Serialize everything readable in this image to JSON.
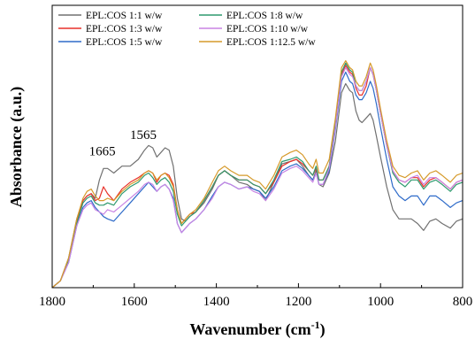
{
  "chart_data": {
    "type": "line",
    "xlabel": "Wavenumber (cm",
    "xlabel_sup": "-1",
    "xlabel_end": ")",
    "ylabel": "Absorbance (a.u.)",
    "xlim": [
      1800,
      800
    ],
    "x_reversed": true,
    "xticks": [
      1800,
      1600,
      1400,
      1200,
      1000,
      800
    ],
    "ylim": [
      0,
      1
    ],
    "yticks_shown": false,
    "grid": false,
    "legend_position": "top-left",
    "annotations": [
      {
        "text": "1665",
        "x": 1665,
        "y": 0.57
      },
      {
        "text": "1565",
        "x": 1565,
        "y": 0.64
      }
    ],
    "series": [
      {
        "name": "EPL:COS 1:1 w/w",
        "color": "#707070",
        "x": [
          1800,
          1780,
          1760,
          1740,
          1725,
          1715,
          1705,
          1695,
          1685,
          1675,
          1665,
          1650,
          1630,
          1610,
          1590,
          1575,
          1565,
          1555,
          1545,
          1535,
          1525,
          1515,
          1505,
          1495,
          1485,
          1475,
          1465,
          1450,
          1430,
          1410,
          1395,
          1380,
          1365,
          1345,
          1325,
          1310,
          1295,
          1280,
          1260,
          1240,
          1220,
          1205,
          1190,
          1175,
          1165,
          1157,
          1150,
          1140,
          1125,
          1110,
          1095,
          1085,
          1075,
          1068,
          1060,
          1052,
          1045,
          1035,
          1025,
          1018,
          1010,
          1000,
          985,
          970,
          955,
          940,
          925,
          910,
          895,
          880,
          865,
          850,
          830,
          815,
          800
        ],
        "y": [
          0.0,
          0.03,
          0.13,
          0.3,
          0.38,
          0.4,
          0.41,
          0.39,
          0.47,
          0.52,
          0.52,
          0.5,
          0.53,
          0.53,
          0.56,
          0.6,
          0.62,
          0.61,
          0.57,
          0.59,
          0.61,
          0.6,
          0.53,
          0.39,
          0.3,
          0.29,
          0.31,
          0.33,
          0.37,
          0.43,
          0.49,
          0.51,
          0.49,
          0.46,
          0.45,
          0.43,
          0.42,
          0.38,
          0.46,
          0.54,
          0.55,
          0.56,
          0.53,
          0.49,
          0.47,
          0.51,
          0.45,
          0.44,
          0.5,
          0.64,
          0.85,
          0.89,
          0.86,
          0.85,
          0.77,
          0.73,
          0.72,
          0.74,
          0.76,
          0.73,
          0.66,
          0.57,
          0.44,
          0.34,
          0.3,
          0.3,
          0.3,
          0.28,
          0.25,
          0.29,
          0.3,
          0.28,
          0.26,
          0.29,
          0.3
        ]
      },
      {
        "name": "EPL:COS 1:3 w/w",
        "color": "#e8312a",
        "x": [
          1800,
          1780,
          1760,
          1740,
          1725,
          1715,
          1705,
          1695,
          1685,
          1675,
          1665,
          1650,
          1630,
          1610,
          1590,
          1575,
          1565,
          1555,
          1545,
          1535,
          1525,
          1515,
          1505,
          1495,
          1485,
          1475,
          1465,
          1450,
          1430,
          1410,
          1395,
          1380,
          1365,
          1345,
          1325,
          1310,
          1295,
          1280,
          1260,
          1240,
          1220,
          1205,
          1190,
          1175,
          1165,
          1157,
          1150,
          1140,
          1125,
          1110,
          1095,
          1085,
          1075,
          1068,
          1060,
          1052,
          1045,
          1035,
          1025,
          1018,
          1010,
          1000,
          985,
          970,
          955,
          940,
          925,
          910,
          895,
          880,
          865,
          850,
          830,
          815,
          800
        ],
        "y": [
          0.0,
          0.03,
          0.12,
          0.29,
          0.38,
          0.4,
          0.41,
          0.38,
          0.39,
          0.44,
          0.41,
          0.38,
          0.43,
          0.46,
          0.48,
          0.5,
          0.51,
          0.5,
          0.46,
          0.49,
          0.5,
          0.49,
          0.45,
          0.34,
          0.28,
          0.3,
          0.32,
          0.33,
          0.38,
          0.44,
          0.49,
          0.51,
          0.49,
          0.47,
          0.47,
          0.45,
          0.44,
          0.41,
          0.46,
          0.53,
          0.55,
          0.56,
          0.54,
          0.51,
          0.49,
          0.52,
          0.47,
          0.47,
          0.53,
          0.71,
          0.93,
          0.97,
          0.94,
          0.93,
          0.87,
          0.84,
          0.84,
          0.88,
          0.96,
          0.93,
          0.86,
          0.76,
          0.62,
          0.51,
          0.47,
          0.46,
          0.48,
          0.48,
          0.44,
          0.47,
          0.48,
          0.46,
          0.43,
          0.46,
          0.47
        ]
      },
      {
        "name": "EPL:COS 1:5 w/w",
        "color": "#2e6bc9",
        "x": [
          1800,
          1780,
          1760,
          1740,
          1725,
          1715,
          1705,
          1695,
          1685,
          1675,
          1665,
          1650,
          1630,
          1610,
          1590,
          1575,
          1565,
          1555,
          1545,
          1535,
          1525,
          1515,
          1505,
          1495,
          1485,
          1475,
          1465,
          1450,
          1430,
          1410,
          1395,
          1380,
          1365,
          1345,
          1325,
          1310,
          1295,
          1280,
          1260,
          1240,
          1220,
          1205,
          1190,
          1175,
          1165,
          1157,
          1150,
          1140,
          1125,
          1110,
          1095,
          1085,
          1075,
          1068,
          1060,
          1052,
          1045,
          1035,
          1025,
          1018,
          1010,
          1000,
          985,
          970,
          955,
          940,
          925,
          910,
          895,
          880,
          865,
          850,
          830,
          815,
          800
        ],
        "y": [
          0.0,
          0.03,
          0.11,
          0.27,
          0.35,
          0.37,
          0.38,
          0.35,
          0.33,
          0.31,
          0.3,
          0.29,
          0.33,
          0.37,
          0.41,
          0.44,
          0.46,
          0.44,
          0.42,
          0.44,
          0.45,
          0.43,
          0.39,
          0.28,
          0.24,
          0.26,
          0.28,
          0.3,
          0.34,
          0.4,
          0.44,
          0.46,
          0.45,
          0.43,
          0.44,
          0.43,
          0.42,
          0.39,
          0.44,
          0.51,
          0.53,
          0.54,
          0.52,
          0.49,
          0.47,
          0.5,
          0.45,
          0.45,
          0.51,
          0.69,
          0.9,
          0.94,
          0.9,
          0.89,
          0.84,
          0.82,
          0.82,
          0.85,
          0.9,
          0.87,
          0.8,
          0.7,
          0.56,
          0.44,
          0.4,
          0.38,
          0.4,
          0.4,
          0.36,
          0.4,
          0.4,
          0.38,
          0.35,
          0.37,
          0.38
        ]
      },
      {
        "name": "EPL:COS 1:8 w/w",
        "color": "#2e9a6e",
        "x": [
          1800,
          1780,
          1760,
          1740,
          1725,
          1715,
          1705,
          1695,
          1685,
          1675,
          1665,
          1650,
          1630,
          1610,
          1590,
          1575,
          1565,
          1555,
          1545,
          1535,
          1525,
          1515,
          1505,
          1495,
          1485,
          1475,
          1465,
          1450,
          1430,
          1410,
          1395,
          1380,
          1365,
          1345,
          1325,
          1310,
          1295,
          1280,
          1260,
          1240,
          1220,
          1205,
          1190,
          1175,
          1165,
          1157,
          1150,
          1140,
          1125,
          1110,
          1095,
          1085,
          1075,
          1068,
          1060,
          1052,
          1045,
          1035,
          1025,
          1018,
          1010,
          1000,
          985,
          970,
          955,
          940,
          925,
          910,
          895,
          880,
          865,
          850,
          830,
          815,
          800
        ],
        "y": [
          0.0,
          0.03,
          0.12,
          0.28,
          0.37,
          0.39,
          0.4,
          0.37,
          0.36,
          0.36,
          0.37,
          0.36,
          0.41,
          0.44,
          0.46,
          0.49,
          0.5,
          0.48,
          0.45,
          0.47,
          0.48,
          0.46,
          0.42,
          0.32,
          0.27,
          0.29,
          0.31,
          0.33,
          0.38,
          0.44,
          0.49,
          0.51,
          0.49,
          0.47,
          0.47,
          0.45,
          0.44,
          0.41,
          0.47,
          0.55,
          0.56,
          0.57,
          0.55,
          0.51,
          0.49,
          0.53,
          0.47,
          0.47,
          0.53,
          0.72,
          0.94,
          0.98,
          0.95,
          0.94,
          0.88,
          0.86,
          0.86,
          0.9,
          0.96,
          0.93,
          0.86,
          0.76,
          0.62,
          0.5,
          0.46,
          0.44,
          0.47,
          0.47,
          0.43,
          0.46,
          0.47,
          0.45,
          0.42,
          0.45,
          0.46
        ]
      },
      {
        "name": "EPL:COS 1:10 w/w",
        "color": "#c884e4",
        "x": [
          1800,
          1780,
          1760,
          1740,
          1725,
          1715,
          1705,
          1695,
          1685,
          1675,
          1665,
          1650,
          1630,
          1610,
          1590,
          1575,
          1565,
          1555,
          1545,
          1535,
          1525,
          1515,
          1505,
          1495,
          1485,
          1475,
          1465,
          1450,
          1430,
          1410,
          1395,
          1380,
          1365,
          1345,
          1325,
          1310,
          1295,
          1280,
          1260,
          1240,
          1220,
          1205,
          1190,
          1175,
          1165,
          1157,
          1150,
          1140,
          1125,
          1110,
          1095,
          1085,
          1075,
          1068,
          1060,
          1052,
          1045,
          1035,
          1025,
          1018,
          1010,
          1000,
          985,
          970,
          955,
          940,
          925,
          910,
          895,
          880,
          865,
          850,
          830,
          815,
          800
        ],
        "y": [
          0.0,
          0.03,
          0.11,
          0.27,
          0.34,
          0.36,
          0.37,
          0.34,
          0.33,
          0.32,
          0.34,
          0.33,
          0.36,
          0.39,
          0.42,
          0.45,
          0.46,
          0.45,
          0.42,
          0.44,
          0.45,
          0.43,
          0.38,
          0.28,
          0.24,
          0.26,
          0.28,
          0.3,
          0.34,
          0.39,
          0.44,
          0.46,
          0.45,
          0.43,
          0.44,
          0.42,
          0.41,
          0.38,
          0.43,
          0.5,
          0.52,
          0.53,
          0.51,
          0.48,
          0.46,
          0.5,
          0.45,
          0.45,
          0.52,
          0.7,
          0.92,
          0.96,
          0.93,
          0.92,
          0.88,
          0.86,
          0.86,
          0.9,
          0.96,
          0.93,
          0.86,
          0.76,
          0.62,
          0.51,
          0.47,
          0.46,
          0.48,
          0.49,
          0.45,
          0.48,
          0.48,
          0.46,
          0.43,
          0.46,
          0.47
        ]
      },
      {
        "name": "EPL:COS 1:12.5 w/w",
        "color": "#d69a2a",
        "x": [
          1800,
          1780,
          1760,
          1740,
          1725,
          1715,
          1705,
          1695,
          1685,
          1675,
          1665,
          1650,
          1630,
          1610,
          1590,
          1575,
          1565,
          1555,
          1545,
          1535,
          1525,
          1515,
          1505,
          1495,
          1485,
          1475,
          1465,
          1450,
          1430,
          1410,
          1395,
          1380,
          1365,
          1345,
          1325,
          1310,
          1295,
          1280,
          1260,
          1240,
          1220,
          1205,
          1190,
          1175,
          1165,
          1157,
          1150,
          1140,
          1125,
          1110,
          1095,
          1085,
          1075,
          1068,
          1060,
          1052,
          1045,
          1035,
          1025,
          1018,
          1010,
          1000,
          985,
          970,
          955,
          940,
          925,
          910,
          895,
          880,
          865,
          850,
          830,
          815,
          800
        ],
        "y": [
          0.0,
          0.03,
          0.13,
          0.3,
          0.39,
          0.42,
          0.43,
          0.4,
          0.38,
          0.38,
          0.39,
          0.38,
          0.42,
          0.45,
          0.47,
          0.5,
          0.51,
          0.5,
          0.47,
          0.49,
          0.5,
          0.48,
          0.44,
          0.34,
          0.28,
          0.3,
          0.32,
          0.34,
          0.39,
          0.46,
          0.51,
          0.53,
          0.51,
          0.49,
          0.49,
          0.47,
          0.46,
          0.43,
          0.49,
          0.57,
          0.59,
          0.6,
          0.58,
          0.54,
          0.52,
          0.56,
          0.5,
          0.5,
          0.56,
          0.74,
          0.96,
          0.99,
          0.96,
          0.95,
          0.9,
          0.88,
          0.88,
          0.92,
          0.98,
          0.95,
          0.88,
          0.78,
          0.64,
          0.53,
          0.49,
          0.48,
          0.5,
          0.51,
          0.47,
          0.5,
          0.51,
          0.49,
          0.46,
          0.49,
          0.5
        ]
      }
    ]
  }
}
